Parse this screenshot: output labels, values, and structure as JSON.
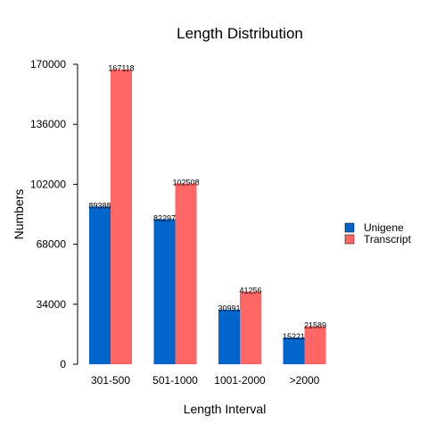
{
  "chart_data": {
    "type": "bar",
    "title": "Length Distribution",
    "xlabel": "Length Interval",
    "ylabel": "Numbers",
    "categories": [
      "301-500",
      "501-1000",
      "1001-2000",
      ">2000"
    ],
    "series": [
      {
        "name": "Unigene",
        "values": [
          89388,
          82297,
          30991,
          15221
        ],
        "color": "#0066CC"
      },
      {
        "name": "Transcript",
        "values": [
          167118,
          102508,
          41256,
          21589
        ],
        "color": "#FF6666"
      }
    ],
    "yticks": [
      "0",
      "34000",
      "68000",
      "102000",
      "136000",
      "170000"
    ],
    "ylim": [
      0,
      170000
    ],
    "grid": false,
    "legend_position": "right"
  }
}
